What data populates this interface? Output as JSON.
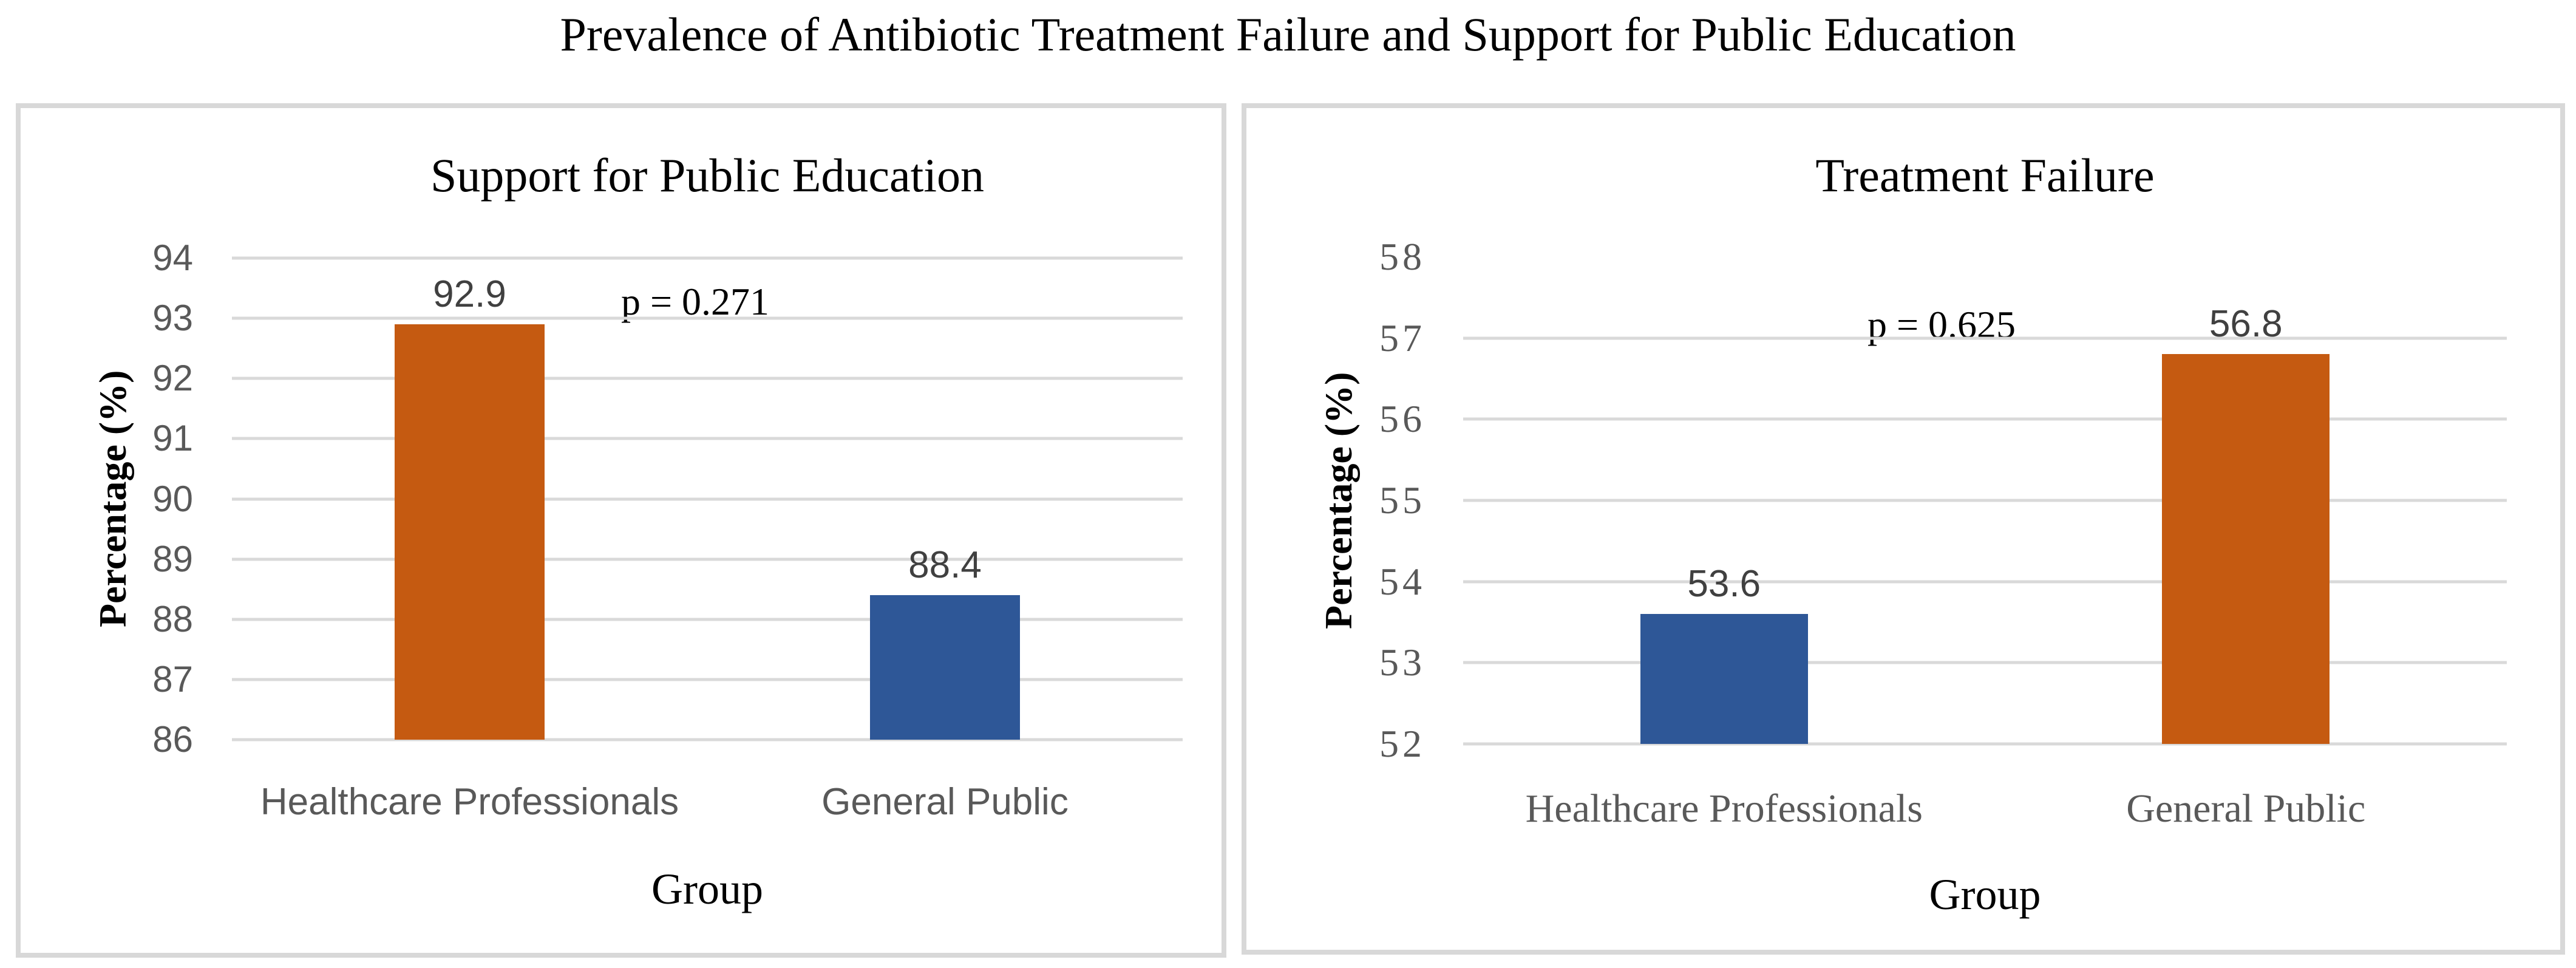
{
  "page": {
    "title": "Prevalence of Antibiotic Treatment Failure and Support for Public Education",
    "background": "#ffffff"
  },
  "colors": {
    "orange_bar": "#C55A11",
    "blue_bar": "#2E5797",
    "gridline": "#D9D9D9",
    "panel_border": "#D8D8D8",
    "tick_text": "#595959",
    "data_label_text": "#404040",
    "title_text": "#000000"
  },
  "chart_data": [
    {
      "type": "bar",
      "title": "Support for Public Education",
      "categories": [
        "Healthcare Professionals",
        "General Public"
      ],
      "values": [
        92.9,
        88.4
      ],
      "data_labels": [
        "92.9",
        "88.4"
      ],
      "bar_colors": [
        "#C55A11",
        "#2E5797"
      ],
      "annotation": "p = 0.271",
      "xlabel": "Group",
      "ylabel": "Percentage (%)",
      "ylim": [
        86,
        94
      ],
      "yticks": [
        94,
        93,
        92,
        91,
        90,
        89,
        88,
        87,
        86
      ],
      "gridline_ticks": [
        94,
        93,
        92,
        91,
        90,
        89,
        88,
        87,
        86
      ],
      "grid": "horizontal",
      "legend": "none"
    },
    {
      "type": "bar",
      "title": "Treatment Failure",
      "categories": [
        "Healthcare Professionals",
        "General Public"
      ],
      "values": [
        53.6,
        56.8
      ],
      "data_labels": [
        "53.6",
        "56.8"
      ],
      "bar_colors": [
        "#2E5797",
        "#C55A11"
      ],
      "annotation": "p = 0.625",
      "xlabel": "Group",
      "ylabel": "Percentage (%)",
      "ylim": [
        52,
        58
      ],
      "yticks": [
        58,
        57,
        56,
        55,
        54,
        53,
        52
      ],
      "gridline_ticks": [
        57,
        56,
        55,
        54,
        53,
        52
      ],
      "grid": "horizontal",
      "legend": "none"
    }
  ]
}
